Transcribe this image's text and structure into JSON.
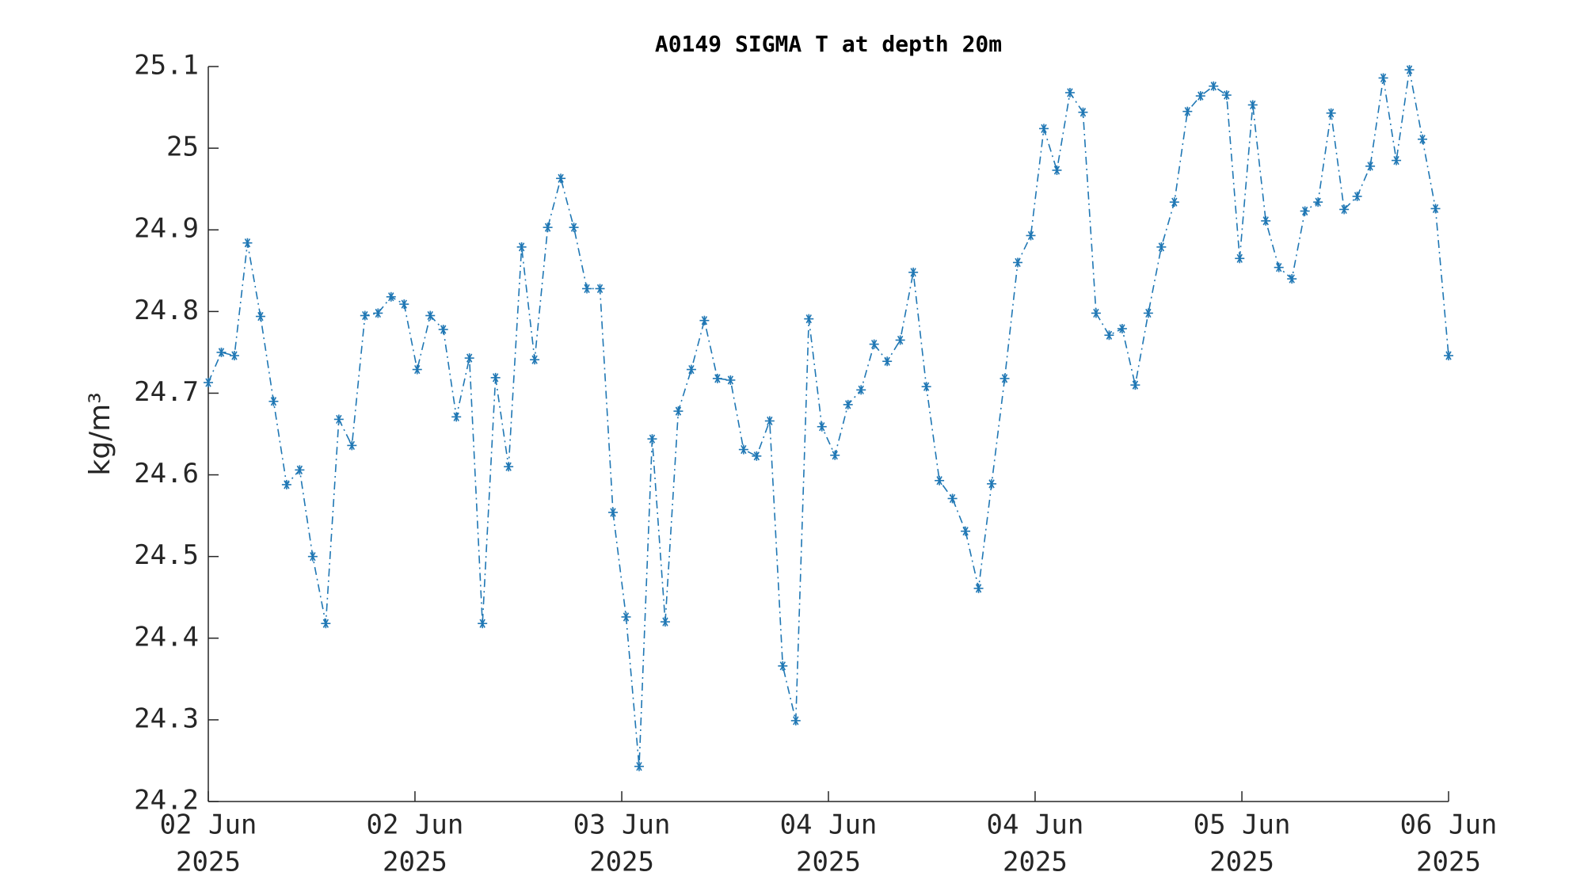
{
  "chart_data": {
    "type": "line",
    "title": "A0149 SIGMA T at depth 20m",
    "ylabel": "kg/m³",
    "x": [
      0,
      1,
      2,
      3,
      4,
      5,
      6,
      7,
      8,
      9,
      10,
      11,
      12,
      13,
      14,
      15,
      16,
      17,
      18,
      19,
      20,
      21,
      22,
      23,
      24,
      25,
      26,
      27,
      28,
      29,
      30,
      31,
      32,
      33,
      34,
      35,
      36,
      37,
      38,
      39,
      40,
      41,
      42,
      43,
      44,
      45,
      46,
      47,
      48,
      49,
      50,
      51,
      52,
      53,
      54,
      55,
      56,
      57,
      58,
      59,
      60,
      61,
      62,
      63,
      64,
      65,
      66,
      67,
      68,
      69,
      70,
      71,
      72,
      73,
      74,
      75,
      76,
      77,
      78,
      79,
      80,
      81,
      82,
      83,
      84,
      85,
      86,
      87,
      88,
      89,
      90,
      91,
      92,
      93,
      94,
      95
    ],
    "series": [
      {
        "name": "SIGMA T",
        "color": "#1f77b4",
        "marker": "asterisk",
        "linestyle": "dashdot",
        "values": [
          24.713,
          24.75,
          24.746,
          24.884,
          24.794,
          24.69,
          24.588,
          24.606,
          24.5,
          24.418,
          24.668,
          24.636,
          24.795,
          24.798,
          24.818,
          24.809,
          24.729,
          24.795,
          24.778,
          24.671,
          24.743,
          24.418,
          24.719,
          24.61,
          24.879,
          24.741,
          24.903,
          24.963,
          24.903,
          24.828,
          24.828,
          24.554,
          24.426,
          24.243,
          24.644,
          24.42,
          24.678,
          24.729,
          24.789,
          24.718,
          24.716,
          24.631,
          24.623,
          24.666,
          24.366,
          24.299,
          24.791,
          24.659,
          24.624,
          24.686,
          24.704,
          24.76,
          24.739,
          24.765,
          24.848,
          24.708,
          24.593,
          24.571,
          24.531,
          24.461,
          24.589,
          24.718,
          24.86,
          24.893,
          25.024,
          24.973,
          25.068,
          25.044,
          24.798,
          24.771,
          24.779,
          24.71,
          24.798,
          24.879,
          24.934,
          25.045,
          25.064,
          25.076,
          25.065,
          24.865,
          25.053,
          24.911,
          24.854,
          24.84,
          24.923,
          24.934,
          25.043,
          24.925,
          24.941,
          24.978,
          25.086,
          24.985,
          25.096,
          25.011,
          24.926,
          24.746
        ]
      }
    ],
    "xlim": [
      0,
      95
    ],
    "xticks": [
      {
        "value": 0,
        "label": [
          "02 Jun",
          "2025"
        ]
      },
      {
        "value": 15.83,
        "label": [
          "02 Jun",
          "2025"
        ]
      },
      {
        "value": 31.67,
        "label": [
          "03 Jun",
          "2025"
        ]
      },
      {
        "value": 47.5,
        "label": [
          "04 Jun",
          "2025"
        ]
      },
      {
        "value": 63.33,
        "label": [
          "04 Jun",
          "2025"
        ]
      },
      {
        "value": 79.17,
        "label": [
          "05 Jun",
          "2025"
        ]
      },
      {
        "value": 95,
        "label": [
          "06 Jun",
          "2025"
        ]
      }
    ],
    "ylim": [
      24.2,
      25.1
    ],
    "yticks": [
      24.2,
      24.3,
      24.4,
      24.5,
      24.6,
      24.7,
      24.8,
      24.9,
      25,
      25.1
    ]
  }
}
